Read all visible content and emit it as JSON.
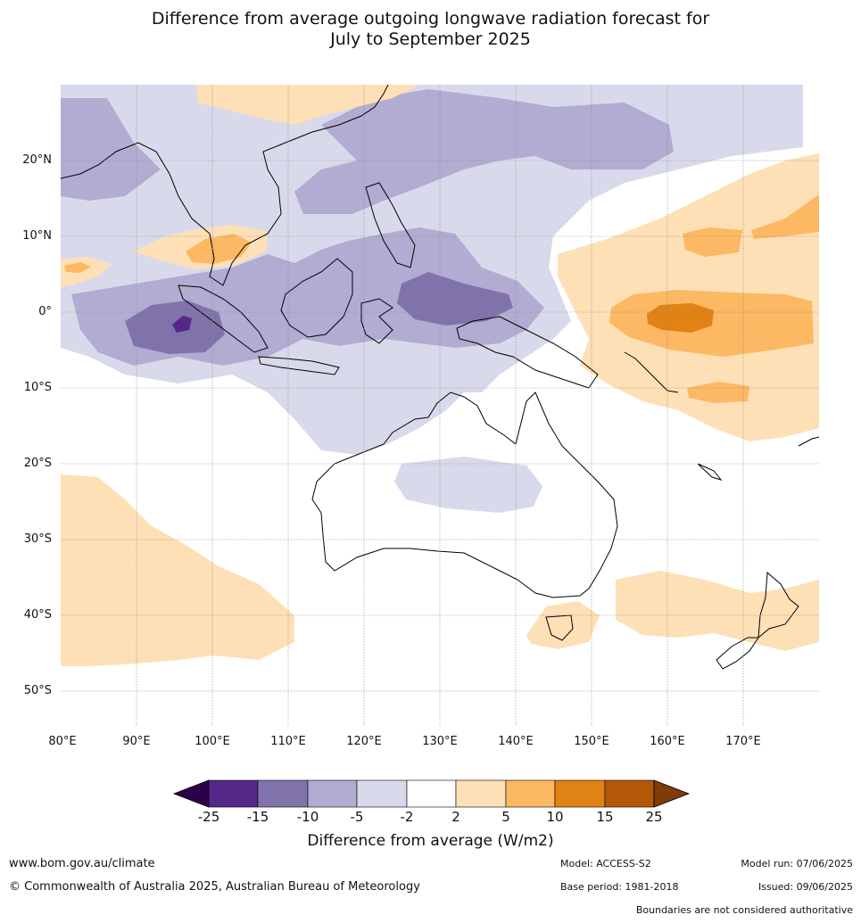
{
  "title_line1": "Difference from average outgoing longwave radiation forecast for",
  "title_line2": "July to September 2025",
  "lat_labels": [
    "20°N",
    "10°N",
    "0°",
    "10°S",
    "20°S",
    "30°S",
    "40°S",
    "50°S"
  ],
  "lon_labels": [
    "80°E",
    "90°E",
    "100°E",
    "110°E",
    "120°E",
    "130°E",
    "140°E",
    "150°E",
    "160°E",
    "170°E"
  ],
  "colorbar": {
    "ticks": [
      "-25",
      "-15",
      "-10",
      "-5",
      "-2",
      "2",
      "5",
      "10",
      "15",
      "25"
    ],
    "colors": [
      "#2d004b",
      "#542788",
      "#8073ac",
      "#b2abd2",
      "#d8daeb",
      "#ffffff",
      "#fee0b6",
      "#fdb863",
      "#e08214",
      "#b35806",
      "#7f3b08"
    ],
    "label": "Difference from average (W/m2)"
  },
  "footer": {
    "website": "www.bom.gov.au/climate",
    "copyright": "© Commonwealth of Australia 2025, Australian Bureau of Meteorology",
    "model": "Model: ACCESS-S2",
    "base_period": "Base period: 1981-2018",
    "model_run": "Model run: 07/06/2025",
    "issued": "Issued: 09/06/2025",
    "disclaimer": "Boundaries are not considered authoritative"
  }
}
